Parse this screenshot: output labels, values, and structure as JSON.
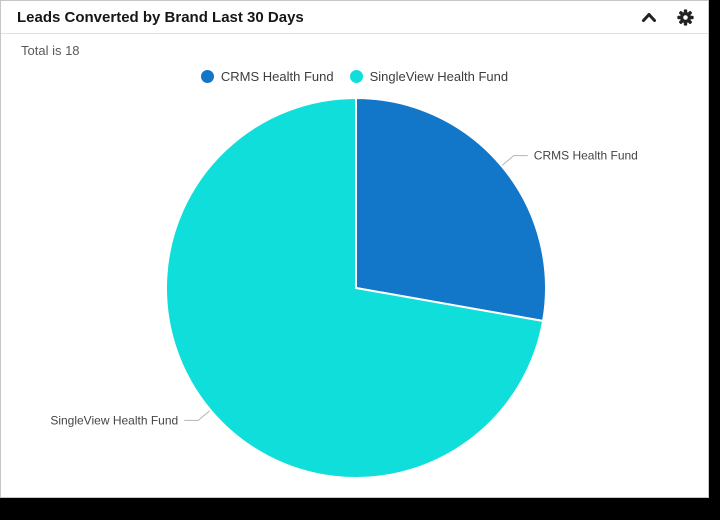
{
  "widget": {
    "title": "Leads Converted by Brand Last 30 Days",
    "summary": "Total is 18"
  },
  "chart_data": {
    "type": "pie",
    "title": "Leads Converted by Brand Last 30 Days",
    "total_text": "Total is 18",
    "total": 18,
    "labels": [
      "CRMS Health Fund",
      "SingleView Health Fund"
    ],
    "values": [
      5,
      13
    ],
    "colors": [
      "#1277C8",
      "#10DEDB"
    ],
    "legend_position": "top",
    "start_angle_deg": 0,
    "direction": "clockwise",
    "slice_stroke": "#ffffff",
    "callout_line_color": "#b4b4b4",
    "callout_text_color": "#454545"
  }
}
